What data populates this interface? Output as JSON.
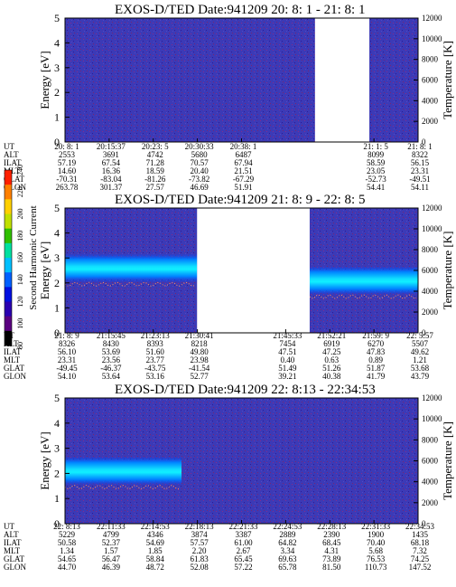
{
  "colorbar": {
    "label": "Second Harmonic Current",
    "ticks": [
      "80",
      "100",
      "120",
      "140",
      "160",
      "180",
      "200",
      "220",
      "240"
    ],
    "colors": [
      "#000000",
      "#5a0080",
      "#2a00b0",
      "#0010e0",
      "#0060ff",
      "#00c0ff",
      "#00e0a0",
      "#30c000",
      "#c0e000",
      "#ffd000",
      "#ff8000",
      "#ff2000"
    ]
  },
  "chart_data": [
    {
      "type": "heatmap",
      "title": "EXOS-D/TED",
      "date": "Date:941209",
      "time_range": "20: 8: 1 - 21: 8: 1",
      "ylabel": "Energy [eV]",
      "ylim": [
        0,
        5
      ],
      "yticks": [
        "0",
        "1",
        "2",
        "3",
        "4",
        "5"
      ],
      "y2label": "Temperature [K]",
      "y2lim": [
        0,
        12000
      ],
      "y2ticks": [
        "0",
        "2000",
        "4000",
        "6000",
        "8000",
        "10000",
        "12000"
      ],
      "data_gap": [
        0.708,
        0.862
      ],
      "band": [],
      "orbit_rows": [
        "UT",
        "ALT",
        "ILAT",
        "MLT",
        "GLAT",
        "GLON"
      ],
      "orbit_columns": [
        {
          "f": 0.0,
          "v": [
            "20: 8: 1",
            "2553",
            "57.19",
            "14.60",
            "-70.31",
            "263.78"
          ]
        },
        {
          "f": 0.125,
          "v": [
            "20:15:37",
            "3691",
            "67.54",
            "16.36",
            "-83.04",
            "301.37"
          ]
        },
        {
          "f": 0.25,
          "v": [
            "20:23: 5",
            "4742",
            "71.28",
            "18.59",
            "-81.26",
            "27.57"
          ]
        },
        {
          "f": 0.375,
          "v": [
            "20:30:33",
            "5680",
            "70.57",
            "20.40",
            "-73.82",
            "46.69"
          ]
        },
        {
          "f": 0.5,
          "v": [
            "20:38: 1",
            "6487",
            "67.94",
            "21.51",
            "-67.29",
            "51.91"
          ]
        },
        {
          "f": 0.875,
          "v": [
            "21: 1: 5",
            "8099",
            "58.59",
            "23.05",
            "-52.73",
            "54.41"
          ]
        },
        {
          "f": 1.0,
          "v": [
            "21: 8: 1",
            "8322",
            "56.15",
            "23.31",
            "-49.51",
            "54.11"
          ]
        }
      ]
    },
    {
      "type": "heatmap",
      "title": "EXOS-D/TED",
      "date": "Date:941209",
      "time_range": "21: 8: 9 - 22: 8: 5",
      "ylabel": "Energy [eV]",
      "ylim": [
        0,
        5
      ],
      "yticks": [
        "0",
        "1",
        "2",
        "3",
        "4",
        "5"
      ],
      "y2label": "Temperature [K]",
      "y2lim": [
        0,
        12000
      ],
      "y2ticks": [
        "0",
        "2000",
        "4000",
        "6000",
        "8000",
        "10000",
        "12000"
      ],
      "data_gap": [
        0.374,
        0.693
      ],
      "band": [
        {
          "x0": 0.0,
          "x1": 0.374,
          "e": 2.6
        },
        {
          "x0": 0.693,
          "x1": 1.0,
          "e": 2.1
        }
      ],
      "orbit_rows": [
        "UT",
        "ALT",
        "ILAT",
        "MLT",
        "GLAT",
        "GLON"
      ],
      "orbit_columns": [
        {
          "f": 0.0,
          "v": [
            "21: 8: 9",
            "8326",
            "56.10",
            "23.31",
            "-49.45",
            "54.10"
          ]
        },
        {
          "f": 0.125,
          "v": [
            "21:15:45",
            "8430",
            "53.69",
            "23.56",
            "-46.37",
            "53.64"
          ]
        },
        {
          "f": 0.25,
          "v": [
            "21:23:13",
            "8393",
            "51.60",
            "23.77",
            "-43.75",
            "53.16"
          ]
        },
        {
          "f": 0.375,
          "v": [
            "21:30:41",
            "8218",
            "49.80",
            "23.98",
            "-41.54",
            "52.77"
          ]
        },
        {
          "f": 0.625,
          "v": [
            "21:45:33",
            "7454",
            "47.51",
            "0.40",
            "51.49",
            "39.21"
          ]
        },
        {
          "f": 0.75,
          "v": [
            "21:52:21",
            "6919",
            "47.25",
            "0.63",
            "51.26",
            "40.38"
          ]
        },
        {
          "f": 0.875,
          "v": [
            "21:59: 9",
            "6270",
            "47.83",
            "0.89",
            "51.87",
            "41.79"
          ]
        },
        {
          "f": 1.0,
          "v": [
            "22: 5:57",
            "5507",
            "49.62",
            "1.21",
            "53.68",
            "43.79"
          ]
        }
      ]
    },
    {
      "type": "heatmap",
      "title": "EXOS-D/TED",
      "date": "Date:941209",
      "time_range": "22: 8:13 - 22:34:53",
      "ylabel": "Energy [eV]",
      "ylim": [
        0,
        5
      ],
      "yticks": [
        "0",
        "1",
        "2",
        "3",
        "4",
        "5"
      ],
      "y2label": "Temperature [K]",
      "y2lim": [
        0,
        12000
      ],
      "y2ticks": [
        "0",
        "2000",
        "4000",
        "6000",
        "8000",
        "10000",
        "12000"
      ],
      "data_gap": [],
      "band": [
        {
          "x0": 0.0,
          "x1": 0.33,
          "e": 2.1
        }
      ],
      "orbit_rows": [
        "UT",
        "ALT",
        "ILAT",
        "MLT",
        "GLAT",
        "GLON"
      ],
      "orbit_columns": [
        {
          "f": 0.0,
          "v": [
            "22: 8:13",
            "5229",
            "50.58",
            "1.34",
            "54.65",
            "44.70"
          ]
        },
        {
          "f": 0.125,
          "v": [
            "22:11:33",
            "4799",
            "52.37",
            "1.57",
            "56.47",
            "46.39"
          ]
        },
        {
          "f": 0.25,
          "v": [
            "22:14:53",
            "4346",
            "54.69",
            "1.85",
            "58.84",
            "48.72"
          ]
        },
        {
          "f": 0.375,
          "v": [
            "22:18:13",
            "3874",
            "57.57",
            "2.20",
            "61.83",
            "52.08"
          ]
        },
        {
          "f": 0.5,
          "v": [
            "22:21:33",
            "3387",
            "61.00",
            "2.67",
            "65.45",
            "57.22"
          ]
        },
        {
          "f": 0.625,
          "v": [
            "22:24:53",
            "2889",
            "64.82",
            "3.34",
            "69.63",
            "65.78"
          ]
        },
        {
          "f": 0.75,
          "v": [
            "22:28:13",
            "2390",
            "68.45",
            "4.31",
            "73.89",
            "81.50"
          ]
        },
        {
          "f": 0.875,
          "v": [
            "22:31:33",
            "1900",
            "70.40",
            "5.68",
            "76.53",
            "110.73"
          ]
        },
        {
          "f": 1.0,
          "v": [
            "22:34:53",
            "1435",
            "68.18",
            "7.32",
            "74.25",
            "147.52"
          ]
        }
      ]
    }
  ]
}
